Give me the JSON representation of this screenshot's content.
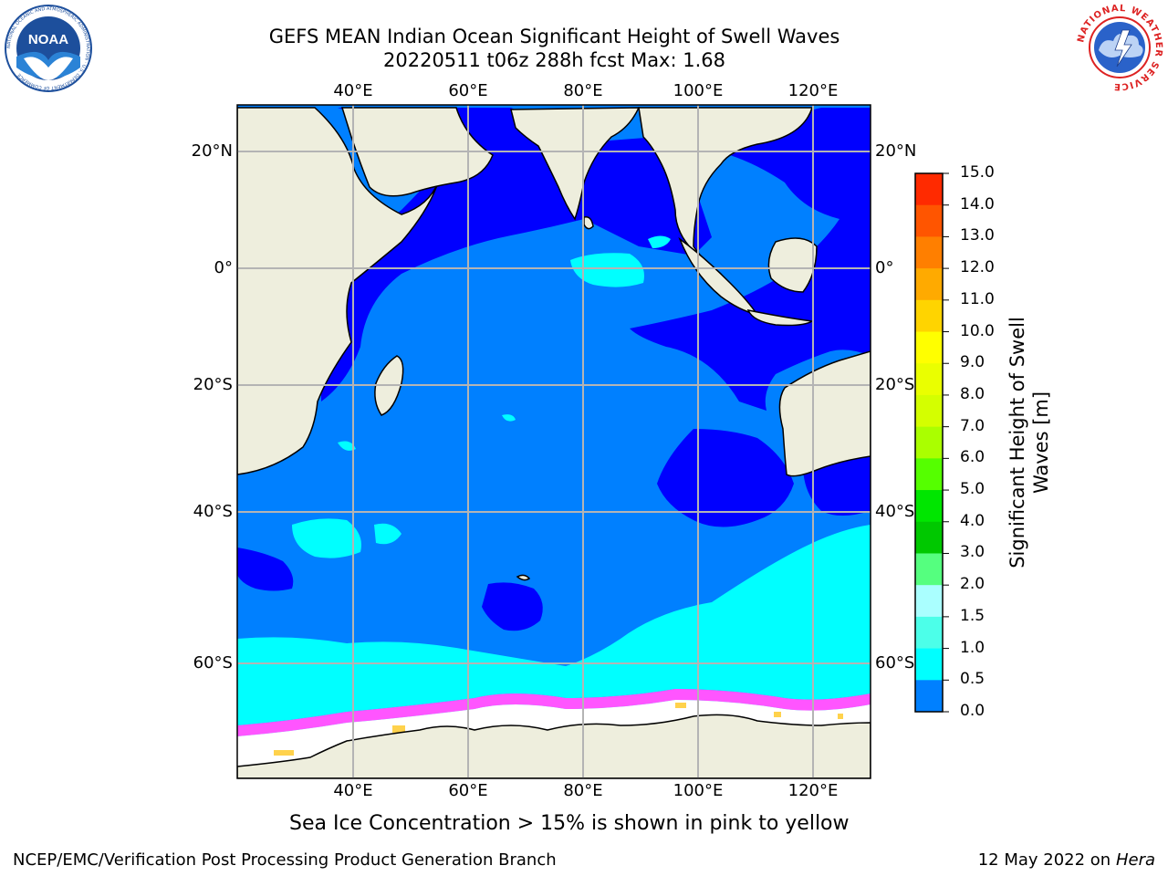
{
  "header": {
    "title_line1": "GEFS MEAN Indian Ocean Significant Height of Swell Waves",
    "title_line2": "20220511 t06z 288h fcst   Max: 1.68"
  },
  "logos": {
    "left": {
      "name": "noaa-logo",
      "text": "NOAA",
      "ring_text": "NATIONAL OCEANIC AND ATMOSPHERIC ADMINISTRATION · U.S. DEPARTMENT OF COMMERCE"
    },
    "right": {
      "name": "nws-logo",
      "ring_text": "NATIONAL WEATHER SERVICE"
    }
  },
  "map": {
    "lon_labels": [
      "40°E",
      "60°E",
      "80°E",
      "100°E",
      "120°E"
    ],
    "lat_labels_left": [
      "20°N",
      "0°",
      "20°S",
      "40°S",
      "60°S"
    ],
    "lat_labels_right": [
      "20°N",
      "0°",
      "20°S",
      "40°S",
      "60°S"
    ],
    "colors": {
      "land": "#eeeedd",
      "ice": "#ffffff",
      "swell_0_0_5": "#0000ff",
      "swell_0_5_1_0": "#0080ff",
      "swell_1_0_1_5": "#00ffff",
      "swell_1_5_2_0": "#4cffe9",
      "ice_edge_pink": "#ff55ff",
      "ice_yellow": "#ffd24c"
    }
  },
  "colorbar": {
    "title": "Significant Height of Swell Waves [m]",
    "title_line1": "Significant Height of Swell",
    "title_line2": "Waves [m]",
    "ticks": [
      "15.0",
      "14.0",
      "13.0",
      "12.0",
      "11.0",
      "10.0",
      "9.0",
      "8.0",
      "7.0",
      "6.0",
      "5.0",
      "4.0",
      "3.0",
      "2.0",
      "1.5",
      "1.0",
      "0.5",
      "0.0"
    ],
    "colors": [
      "#ff0000",
      "#ff2a00",
      "#ff5500",
      "#ff7f00",
      "#ffaa00",
      "#ffd400",
      "#ffff00",
      "#eaff00",
      "#d4ff00",
      "#aaff00",
      "#55ff00",
      "#00e600",
      "#00c800",
      "#55ff7f",
      "#aaffff",
      "#4cffe9",
      "#00ffff",
      "#0080ff",
      "#0000ff"
    ]
  },
  "footer": {
    "note": "Sea Ice Concentration > 15% is shown in pink to yellow",
    "left": "NCEP/EMC/Verification Post Processing Product Generation Branch",
    "right_prefix": "12 May 2022 on",
    "right_host": "Hera"
  }
}
